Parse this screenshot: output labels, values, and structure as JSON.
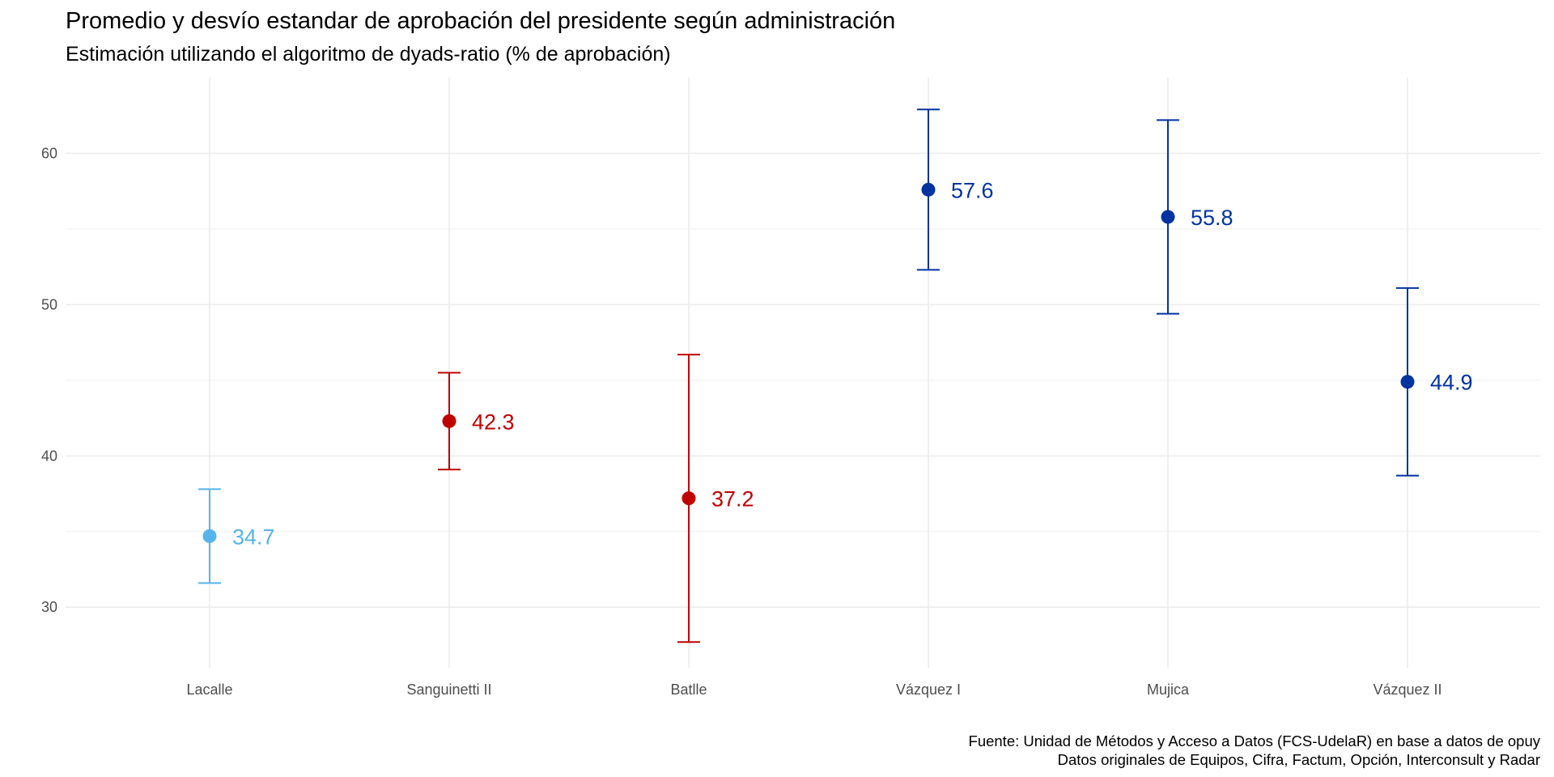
{
  "chart_data": {
    "type": "errorbar",
    "title": "Promedio y desvío estandar de aprobación del presidente según administración",
    "subtitle": "Estimación utilizando el algoritmo de dyads-ratio (% de aprobación)",
    "xlabel": "",
    "ylabel": "",
    "ylim": [
      26,
      65
    ],
    "yticks": [
      30,
      40,
      50,
      60
    ],
    "grid": true,
    "legend": "none",
    "categories": [
      "Lacalle",
      "Sanguinetti II",
      "Batlle",
      "Vázquez I",
      "Mujica",
      "Vázquez II"
    ],
    "points": [
      {
        "category": "Lacalle",
        "mean": 34.7,
        "low": 31.6,
        "high": 37.8,
        "label": "34.7",
        "color": "#56B4E9"
      },
      {
        "category": "Sanguinetti II",
        "mean": 42.3,
        "low": 39.1,
        "high": 45.5,
        "label": "42.3",
        "color": "#C00000"
      },
      {
        "category": "Batlle",
        "mean": 37.2,
        "low": 27.7,
        "high": 46.7,
        "label": "37.2",
        "color": "#C00000"
      },
      {
        "category": "Vázquez I",
        "mean": 57.6,
        "low": 52.3,
        "high": 62.9,
        "label": "57.6",
        "color": "#0033A0"
      },
      {
        "category": "Mujica",
        "mean": 55.8,
        "low": 49.4,
        "high": 62.2,
        "label": "55.8",
        "color": "#0033A0"
      },
      {
        "category": "Vázquez II",
        "mean": 44.9,
        "low": 38.7,
        "high": 51.1,
        "label": "44.9",
        "color": "#0033A0"
      }
    ]
  },
  "caption": {
    "line1": "Fuente: Unidad de Métodos y Acceso a Datos (FCS-UdelaR) en base a datos de opuy",
    "line2": "Datos originales de Equipos, Cifra, Factum, Opción, Interconsult y Radar"
  },
  "colors": {
    "grid": "#ebebeb",
    "tick": "#4d4d4d"
  }
}
